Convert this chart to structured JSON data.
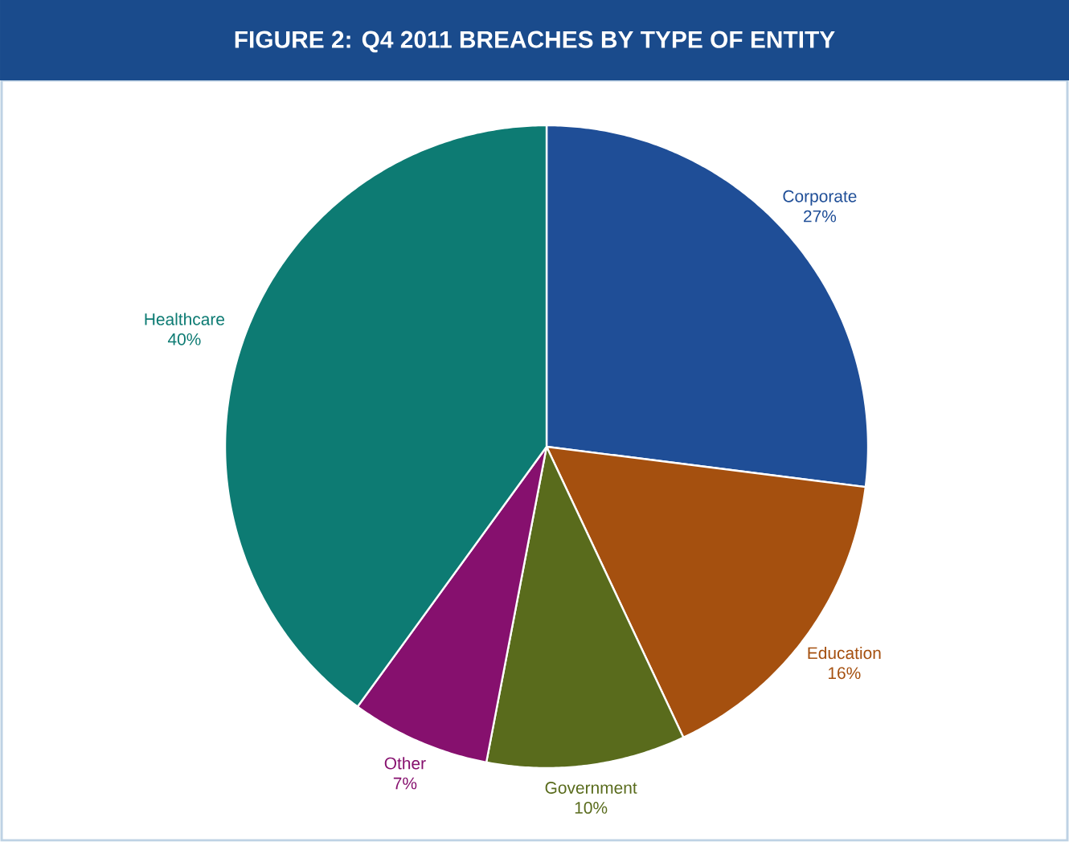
{
  "chart_data": {
    "type": "pie",
    "title": "FIGURE 2: Q4 2011 BREACHES BY TYPE OF ENTITY",
    "categories": [
      "Corporate",
      "Education",
      "Government",
      "Other",
      "Healthcare"
    ],
    "values": [
      27,
      16,
      10,
      7,
      40
    ],
    "value_labels": [
      "27%",
      "16%",
      "10%",
      "7%",
      "40%"
    ],
    "colors": [
      "#1f4e97",
      "#a5500f",
      "#596b1c",
      "#86106e",
      "#0d7b73"
    ]
  }
}
